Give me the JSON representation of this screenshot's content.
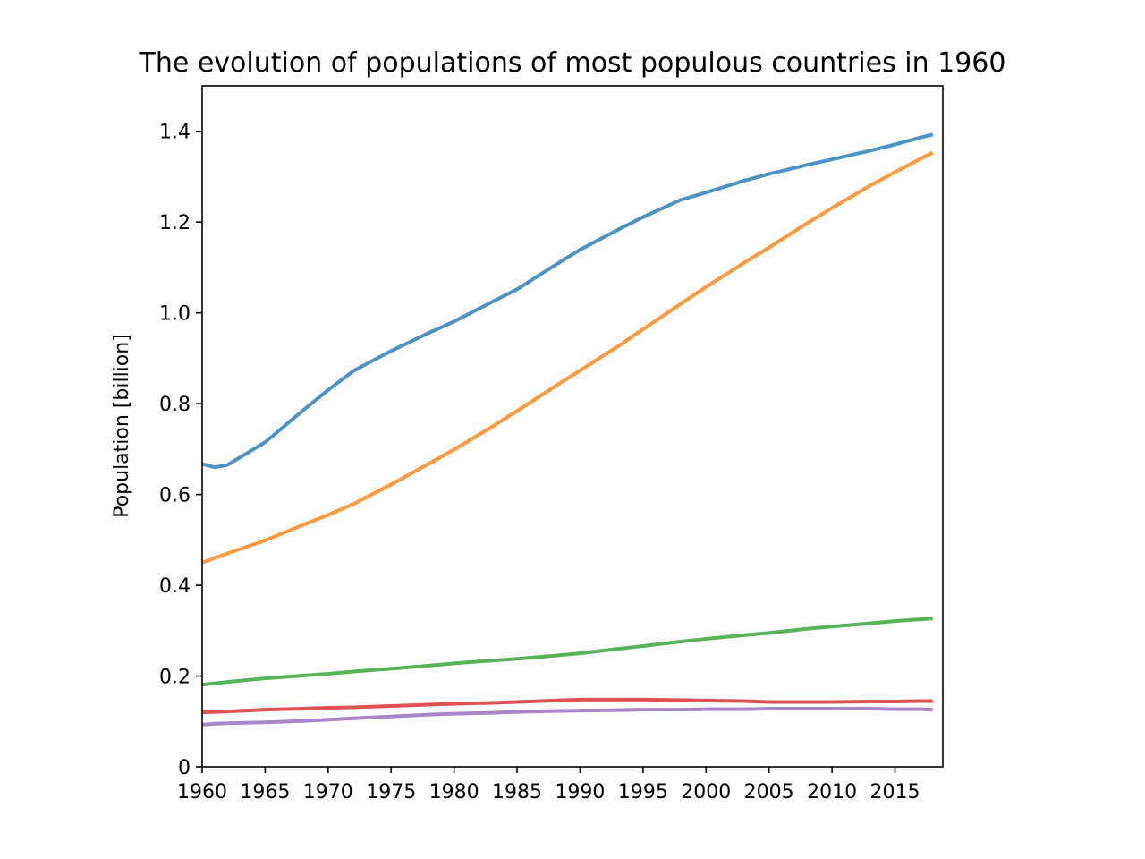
{
  "chart_data": {
    "type": "line",
    "title": "The evolution of populations of most populous countries in 1960",
    "xlabel": "",
    "ylabel": "Population [billion]",
    "xlim": [
      1960,
      2018.8
    ],
    "ylim": [
      0,
      1.5
    ],
    "grid": false,
    "legend": "none",
    "x_ticks": [
      1960,
      1965,
      1970,
      1975,
      1980,
      1985,
      1990,
      1995,
      2000,
      2005,
      2010,
      2015
    ],
    "x_tick_labels": [
      "1960",
      "1965",
      "1970",
      "1975",
      "1980",
      "1985",
      "1990",
      "1995",
      "2000",
      "2005",
      "2010",
      "2015"
    ],
    "y_ticks": [
      0,
      0.2,
      0.4,
      0.6,
      0.8,
      1.0,
      1.2,
      1.4
    ],
    "y_tick_labels": [
      "0",
      "0.2",
      "0.4",
      "0.6",
      "0.8",
      "1.0",
      "1.2",
      "1.4"
    ],
    "x": [
      1960,
      1961,
      1962,
      1965,
      1968,
      1970,
      1972,
      1975,
      1978,
      1980,
      1983,
      1985,
      1988,
      1990,
      1993,
      1995,
      1998,
      2000,
      2003,
      2005,
      2008,
      2010,
      2013,
      2015,
      2017,
      2018
    ],
    "series": [
      {
        "color": "#1f77b4",
        "values": [
          0.667,
          0.66,
          0.665,
          0.715,
          0.785,
          0.83,
          0.872,
          0.916,
          0.956,
          0.981,
          1.024,
          1.052,
          1.105,
          1.139,
          1.183,
          1.211,
          1.249,
          1.265,
          1.291,
          1.306,
          1.326,
          1.338,
          1.357,
          1.371,
          1.386,
          1.393
        ]
      },
      {
        "color": "#ff7f0e",
        "values": [
          0.45,
          0.46,
          0.47,
          0.499,
          0.533,
          0.555,
          0.579,
          0.622,
          0.668,
          0.699,
          0.749,
          0.784,
          0.838,
          0.873,
          0.926,
          0.964,
          1.02,
          1.057,
          1.11,
          1.144,
          1.197,
          1.231,
          1.28,
          1.31,
          1.339,
          1.353
        ]
      },
      {
        "color": "#2ca02c",
        "values": [
          0.181,
          0.184,
          0.187,
          0.195,
          0.201,
          0.205,
          0.21,
          0.216,
          0.223,
          0.228,
          0.234,
          0.238,
          0.245,
          0.25,
          0.26,
          0.266,
          0.276,
          0.282,
          0.29,
          0.295,
          0.304,
          0.309,
          0.316,
          0.321,
          0.325,
          0.327
        ]
      },
      {
        "color": "#d62728",
        "values": [
          0.12,
          0.121,
          0.122,
          0.126,
          0.128,
          0.13,
          0.131,
          0.134,
          0.137,
          0.139,
          0.141,
          0.143,
          0.146,
          0.148,
          0.148,
          0.148,
          0.147,
          0.146,
          0.145,
          0.143,
          0.143,
          0.143,
          0.144,
          0.144,
          0.145,
          0.145
        ]
      },
      {
        "color": "#9467bd",
        "values": [
          0.093,
          0.095,
          0.096,
          0.098,
          0.101,
          0.104,
          0.107,
          0.111,
          0.115,
          0.117,
          0.119,
          0.121,
          0.123,
          0.124,
          0.125,
          0.126,
          0.126,
          0.127,
          0.127,
          0.128,
          0.128,
          0.128,
          0.128,
          0.127,
          0.127,
          0.126
        ]
      }
    ]
  }
}
